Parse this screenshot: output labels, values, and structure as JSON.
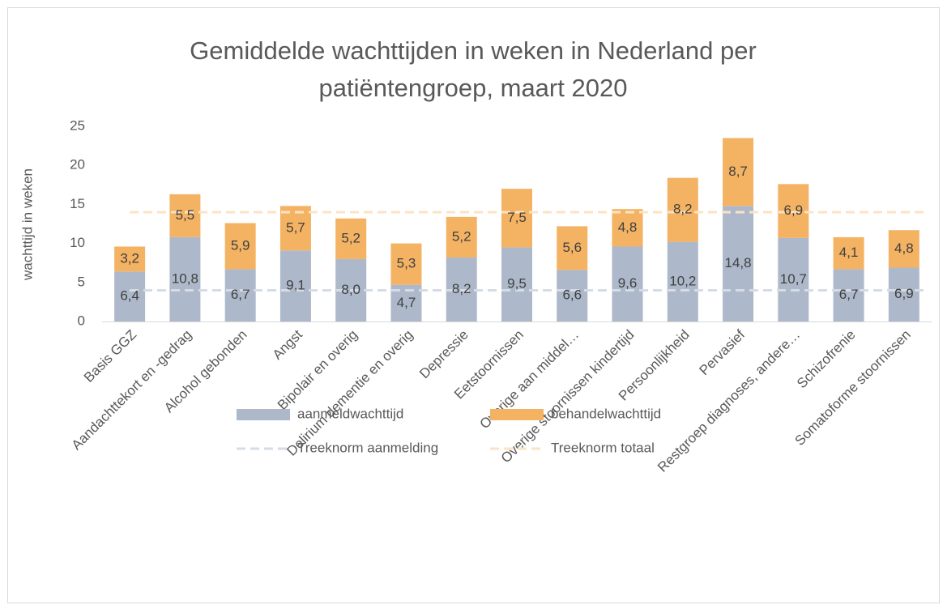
{
  "chart_data": {
    "type": "stacked_bar",
    "title": "Gemiddelde wachttijden in weken in Nederland per patiëntengroep, maart 2020",
    "y_label": "wachttijd in weken",
    "categories": [
      "Basis GGZ",
      "Aandachttekort en -gedrag",
      "Alcohol gebonden",
      "Angst",
      "Bipolair en overig",
      "Delirium dementie en overig",
      "Depressie",
      "Eetstoornissen",
      "Overige aan middel…",
      "Overige stoornissen kindertijd",
      "Persoonlijkheid",
      "Pervasief",
      "Restgroep diagnoses, andere…",
      "Schizofrenie",
      "Somatoforme stoornissen"
    ],
    "series": [
      {
        "name": "aanmeldwachttijd",
        "color": "#adb9ca",
        "values": [
          6.4,
          10.8,
          6.7,
          9.1,
          8.0,
          4.7,
          8.2,
          9.5,
          6.6,
          9.6,
          10.2,
          14.8,
          10.7,
          6.7,
          6.9
        ],
        "value_labels": [
          "6,4",
          "10,8",
          "6,7",
          "9,1",
          "8,0",
          "4,7",
          "8,2",
          "9,5",
          "6,6",
          "9,6",
          "10,2",
          "14,8",
          "10,7",
          "6,7",
          "6,9"
        ]
      },
      {
        "name": "behandelwachttijd",
        "color": "#f4b263",
        "values": [
          3.2,
          5.5,
          5.9,
          5.7,
          5.2,
          5.3,
          5.2,
          7.5,
          5.6,
          4.8,
          8.2,
          8.7,
          6.9,
          4.1,
          4.8
        ],
        "value_labels": [
          "3,2",
          "5,5",
          "5,9",
          "5,7",
          "5,2",
          "5,3",
          "5,2",
          "7,5",
          "5,6",
          "4,8",
          "8,2",
          "8,7",
          "6,9",
          "4,1",
          "4,8"
        ]
      }
    ],
    "reference_lines": [
      {
        "name": "Treeknorm aanmelding",
        "color": "#d6dce5",
        "value": 4
      },
      {
        "name": "Treeknorm totaal",
        "color": "#fbe3c4",
        "value": 14
      }
    ],
    "ylim": [
      0,
      25
    ],
    "yticks": [
      0,
      5,
      10,
      15,
      20,
      25
    ],
    "grid": false,
    "legend": "bottom"
  }
}
